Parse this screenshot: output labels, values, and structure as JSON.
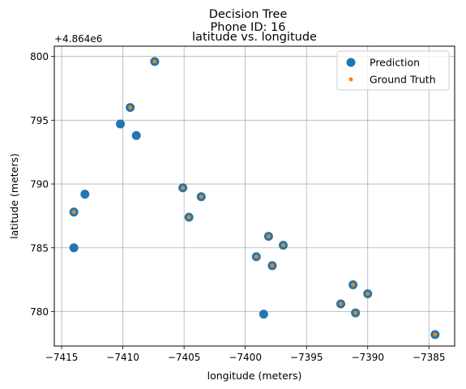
{
  "titles": [
    "Decision Tree",
    "Phone ID: 16",
    "latitude vs. longitude"
  ],
  "chart_data": {
    "type": "scatter",
    "title": "latitude vs. longitude",
    "xlabel": "longitude (meters)",
    "ylabel": "latitude (meters)",
    "y_offset_label": "+4.864e6",
    "xlim": [
      -7415.6,
      -7382.9
    ],
    "ylim": [
      777.3,
      800.8
    ],
    "xticks": [
      -7415,
      -7410,
      -7405,
      -7400,
      -7395,
      -7390,
      -7385
    ],
    "xtick_labels": [
      "−7415",
      "−7410",
      "−7405",
      "−7400",
      "−7395",
      "−7390",
      "−7385"
    ],
    "yticks": [
      780,
      785,
      790,
      795,
      800
    ],
    "ytick_labels": [
      "780",
      "785",
      "790",
      "795",
      "800"
    ],
    "grid": true,
    "legend_position": "top-right",
    "series": [
      {
        "name": "Prediction",
        "color": "#1f77b4",
        "marker": "circle-large",
        "points": [
          [
            -7407.4,
            799.6
          ],
          [
            -7409.4,
            796.0
          ],
          [
            -7410.2,
            794.7
          ],
          [
            -7408.9,
            793.8
          ],
          [
            -7413.1,
            789.2
          ],
          [
            -7405.1,
            789.7
          ],
          [
            -7403.6,
            789.0
          ],
          [
            -7414.0,
            787.8
          ],
          [
            -7404.6,
            787.4
          ],
          [
            -7414.0,
            785.0
          ],
          [
            -7398.1,
            785.9
          ],
          [
            -7396.9,
            785.2
          ],
          [
            -7399.1,
            784.3
          ],
          [
            -7397.8,
            783.6
          ],
          [
            -7391.2,
            782.1
          ],
          [
            -7390.0,
            781.4
          ],
          [
            -7392.2,
            780.6
          ],
          [
            -7398.5,
            779.8
          ],
          [
            -7391.0,
            779.9
          ],
          [
            -7384.5,
            778.2
          ]
        ]
      },
      {
        "name": "Ground Truth",
        "color": "#ff7f0e",
        "marker": "circle-small",
        "points": [
          [
            -7407.4,
            799.6
          ],
          [
            -7409.4,
            796.0
          ],
          [
            -7405.1,
            789.7
          ],
          [
            -7403.6,
            789.0
          ],
          [
            -7414.0,
            787.8
          ],
          [
            -7404.6,
            787.4
          ],
          [
            -7398.1,
            785.9
          ],
          [
            -7396.9,
            785.2
          ],
          [
            -7399.1,
            784.3
          ],
          [
            -7397.8,
            783.6
          ],
          [
            -7391.2,
            782.1
          ],
          [
            -7390.0,
            781.4
          ],
          [
            -7392.2,
            780.6
          ],
          [
            -7391.0,
            779.9
          ],
          [
            -7384.5,
            778.2
          ]
        ]
      }
    ]
  }
}
